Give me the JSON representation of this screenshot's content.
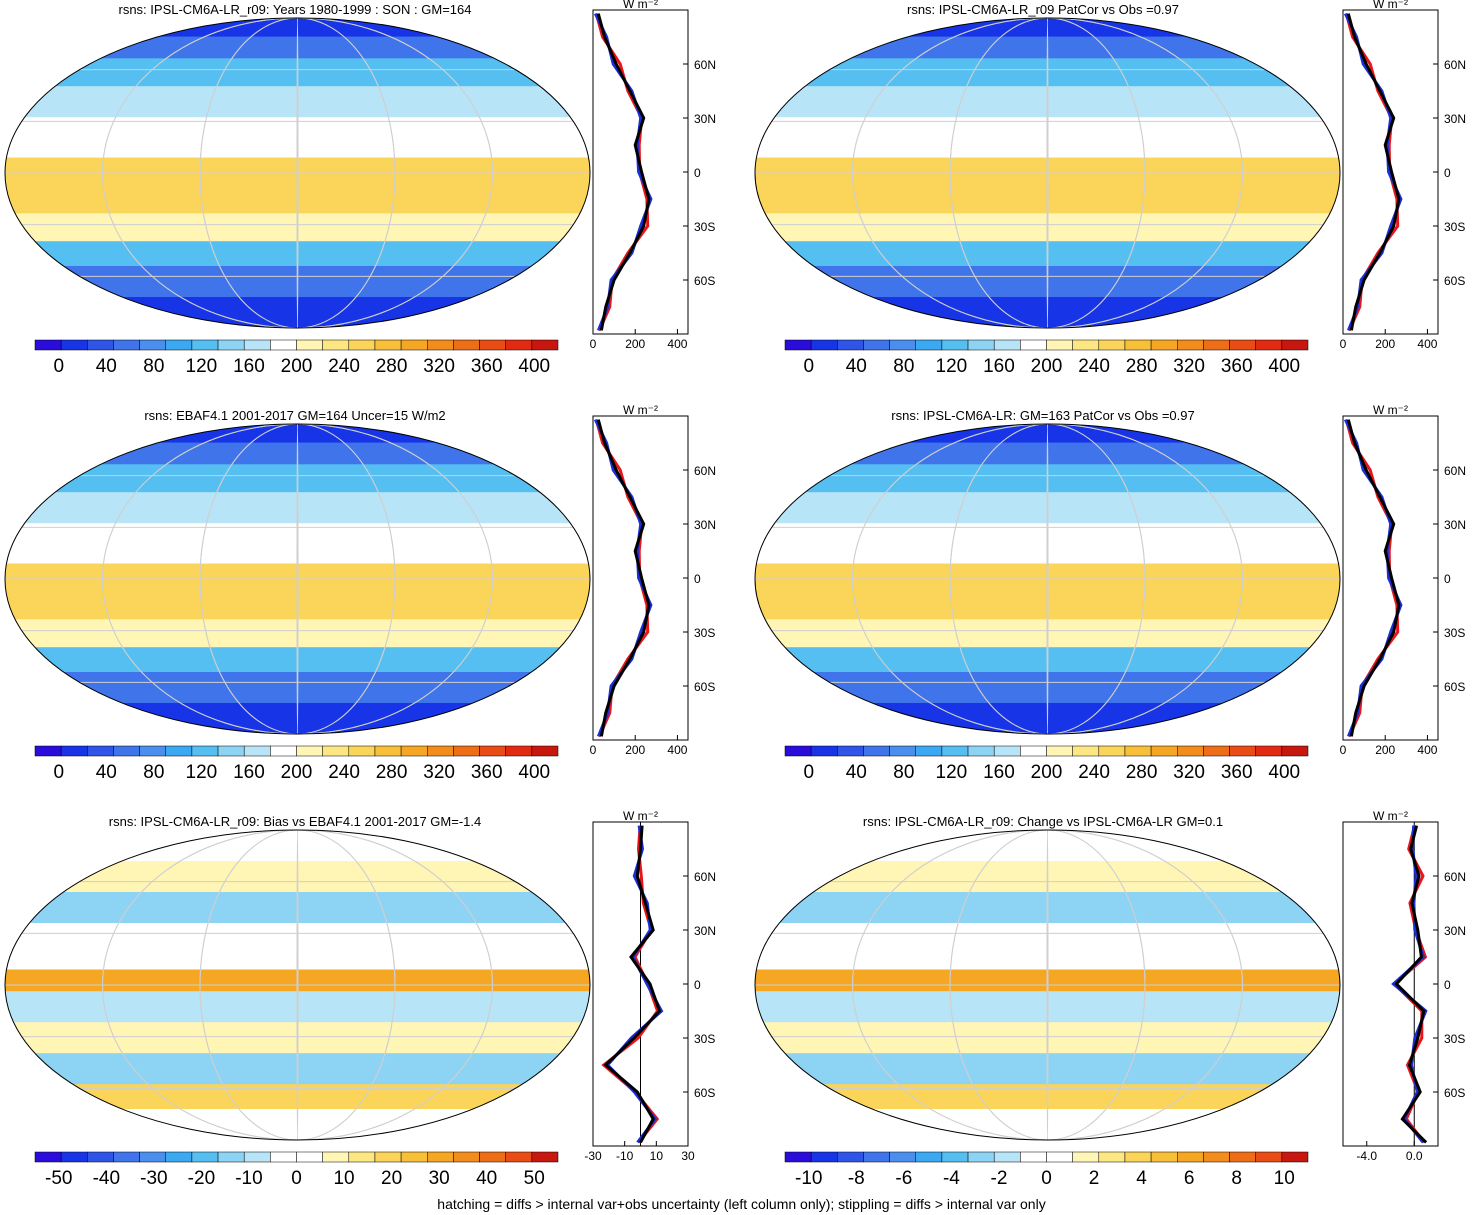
{
  "zonal_lat_ticks": [
    "60N",
    "30N",
    "0",
    "30S",
    "60S"
  ],
  "zonal_unit": "W m⁻²",
  "colors": {
    "model_line": "#000000",
    "obs_line_red": "#e8161b",
    "obs_line_blue": "#1b2fd6"
  },
  "chart_data": [
    {
      "type": "heatmap",
      "title": "rsns: IPSL-CM6A-LR_r09: Years 1980-1999 : SON : GM=164",
      "colorbar_ticks": [
        "0",
        "40",
        "80",
        "120",
        "160",
        "200",
        "240",
        "280",
        "320",
        "360",
        "400"
      ],
      "colorbar_range": [
        -20,
        420
      ],
      "zonal_ticks": [
        "0",
        "200",
        "400"
      ],
      "zonal_range": [
        0,
        450
      ],
      "zonal_profile": {
        "lat": [
          -88,
          -75,
          -60,
          -45,
          -30,
          -15,
          0,
          15,
          30,
          45,
          60,
          75,
          88
        ],
        "values": [
          40,
          60,
          100,
          175,
          240,
          265,
          230,
          200,
          240,
          175,
          110,
          55,
          25
        ]
      },
      "palette": "sequential"
    },
    {
      "type": "heatmap",
      "title": "rsns: IPSL-CM6A-LR_r09 PatCor vs Obs =0.97",
      "colorbar_ticks": [
        "0",
        "40",
        "80",
        "120",
        "160",
        "200",
        "240",
        "280",
        "320",
        "360",
        "400"
      ],
      "colorbar_range": [
        -20,
        420
      ],
      "zonal_ticks": [
        "0",
        "200",
        "400"
      ],
      "zonal_range": [
        0,
        450
      ],
      "zonal_profile": {
        "lat": [
          -88,
          -75,
          -60,
          -45,
          -30,
          -15,
          0,
          15,
          30,
          45,
          60,
          75,
          88
        ],
        "values": [
          40,
          60,
          100,
          175,
          240,
          265,
          230,
          200,
          240,
          175,
          110,
          55,
          25
        ]
      },
      "palette": "sequential"
    },
    {
      "type": "heatmap",
      "title": "rsns: EBAF4.1 2001-2017 GM=164 Uncer=15 W/m2",
      "colorbar_ticks": [
        "0",
        "40",
        "80",
        "120",
        "160",
        "200",
        "240",
        "280",
        "320",
        "360",
        "400"
      ],
      "colorbar_range": [
        -20,
        420
      ],
      "zonal_ticks": [
        "0",
        "200",
        "400"
      ],
      "zonal_range": [
        0,
        450
      ],
      "zonal_profile": {
        "lat": [
          -88,
          -75,
          -60,
          -45,
          -30,
          -15,
          0,
          15,
          30,
          45,
          60,
          75,
          88
        ],
        "values": [
          40,
          60,
          100,
          175,
          240,
          265,
          230,
          200,
          240,
          175,
          110,
          55,
          25
        ]
      },
      "palette": "sequential"
    },
    {
      "type": "heatmap",
      "title": "rsns: IPSL-CM6A-LR: GM=163 PatCor vs Obs =0.97",
      "colorbar_ticks": [
        "0",
        "40",
        "80",
        "120",
        "160",
        "200",
        "240",
        "280",
        "320",
        "360",
        "400"
      ],
      "colorbar_range": [
        -20,
        420
      ],
      "zonal_ticks": [
        "0",
        "200",
        "400"
      ],
      "zonal_range": [
        0,
        450
      ],
      "zonal_profile": {
        "lat": [
          -88,
          -75,
          -60,
          -45,
          -30,
          -15,
          0,
          15,
          30,
          45,
          60,
          75,
          88
        ],
        "values": [
          40,
          60,
          100,
          175,
          240,
          265,
          230,
          200,
          240,
          175,
          110,
          55,
          25
        ]
      },
      "palette": "sequential"
    },
    {
      "type": "heatmap",
      "title": "rsns: IPSL-CM6A-LR_r09: Bias vs EBAF4.1 2001-2017  GM=-1.4",
      "colorbar_ticks": [
        "-50",
        "-40",
        "-30",
        "-20",
        "-10",
        "0",
        "10",
        "20",
        "30",
        "40",
        "50"
      ],
      "colorbar_range": [
        -55,
        55
      ],
      "zonal_ticks": [
        "-30",
        "-10",
        "10",
        "30"
      ],
      "zonal_range": [
        -30,
        30
      ],
      "zonal_profile": {
        "lat": [
          -88,
          -75,
          -60,
          -45,
          -30,
          -15,
          0,
          15,
          30,
          45,
          60,
          75,
          88
        ],
        "values": [
          0,
          8,
          -2,
          -22,
          -4,
          12,
          6,
          -6,
          8,
          3,
          -2,
          0,
          1
        ]
      },
      "palette": "diverging"
    },
    {
      "type": "heatmap",
      "title": "rsns: IPSL-CM6A-LR_r09: Change vs IPSL-CM6A-LR GM=0.1",
      "colorbar_ticks": [
        "-10",
        "-8",
        "-6",
        "-4",
        "-2",
        "0",
        "2",
        "4",
        "6",
        "8",
        "10"
      ],
      "colorbar_range": [
        -11,
        11
      ],
      "zonal_ticks": [
        "-4.0",
        "0.0"
      ],
      "zonal_range": [
        -6,
        2
      ],
      "zonal_profile": {
        "lat": [
          -88,
          -75,
          -60,
          -45,
          -30,
          -15,
          0,
          15,
          30,
          45,
          60,
          75,
          88
        ],
        "values": [
          1,
          -1,
          0.5,
          -0.4,
          0.3,
          0.8,
          -1.5,
          0.6,
          0.3,
          -0.2,
          0.4,
          -0.3,
          0.2
        ]
      },
      "palette": "diverging"
    }
  ],
  "footer": "hatching = diffs > internal var+obs uncertainty (left column only); stippling = diffs > internal var only"
}
